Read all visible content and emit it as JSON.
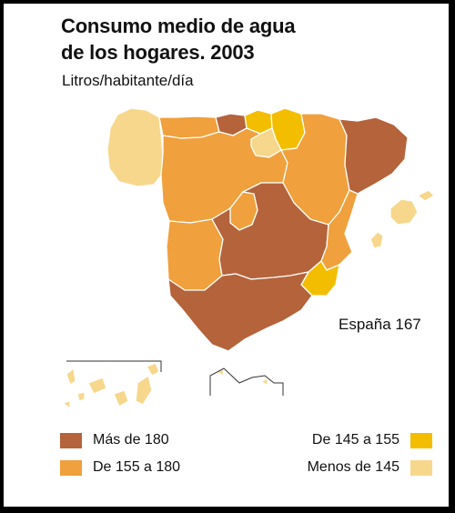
{
  "title_line1": "Consumo medio de agua",
  "title_line2": "de los hogares. 2003",
  "subtitle": "Litros/habitante/día",
  "national_label": "España 167",
  "colors": {
    "mas_180": "#B5633B",
    "de_155_180": "#F0A03C",
    "de_145_155": "#F4BE00",
    "menos_145": "#F7D78B",
    "border": "#ffffff"
  },
  "legend": [
    {
      "label": "Más de 180",
      "color": "#B5633B"
    },
    {
      "label": "De 155 a 180",
      "color": "#F0A03C"
    },
    {
      "label": "De 145 a 155",
      "color": "#F4BE00"
    },
    {
      "label": "Menos de 145",
      "color": "#F7D78B"
    }
  ],
  "regions": [
    {
      "name": "Galicia",
      "class": "Menos de 145"
    },
    {
      "name": "Asturias",
      "class": "De 155 a 180"
    },
    {
      "name": "Cantabria",
      "class": "Más de 180"
    },
    {
      "name": "País Vasco",
      "class": "De 145 a 155"
    },
    {
      "name": "Navarra",
      "class": "De 145 a 155"
    },
    {
      "name": "La Rioja",
      "class": "Menos de 145"
    },
    {
      "name": "Aragón",
      "class": "De 155 a 180"
    },
    {
      "name": "Cataluña",
      "class": "Más de 180"
    },
    {
      "name": "Castilla y León",
      "class": "De 155 a 180"
    },
    {
      "name": "Madrid",
      "class": "De 155 a 180"
    },
    {
      "name": "Castilla-La Mancha",
      "class": "Más de 180"
    },
    {
      "name": "Extremadura",
      "class": "De 155 a 180"
    },
    {
      "name": "Comunitat Valenciana",
      "class": "De 155 a 180"
    },
    {
      "name": "Región de Murcia",
      "class": "De 145 a 155"
    },
    {
      "name": "Andalucía",
      "class": "Más de 180"
    },
    {
      "name": "Illes Balears",
      "class": "Menos de 145"
    },
    {
      "name": "Canarias",
      "class": "Menos de 145"
    },
    {
      "name": "Ceuta y Melilla",
      "class": "Menos de 145"
    }
  ]
}
